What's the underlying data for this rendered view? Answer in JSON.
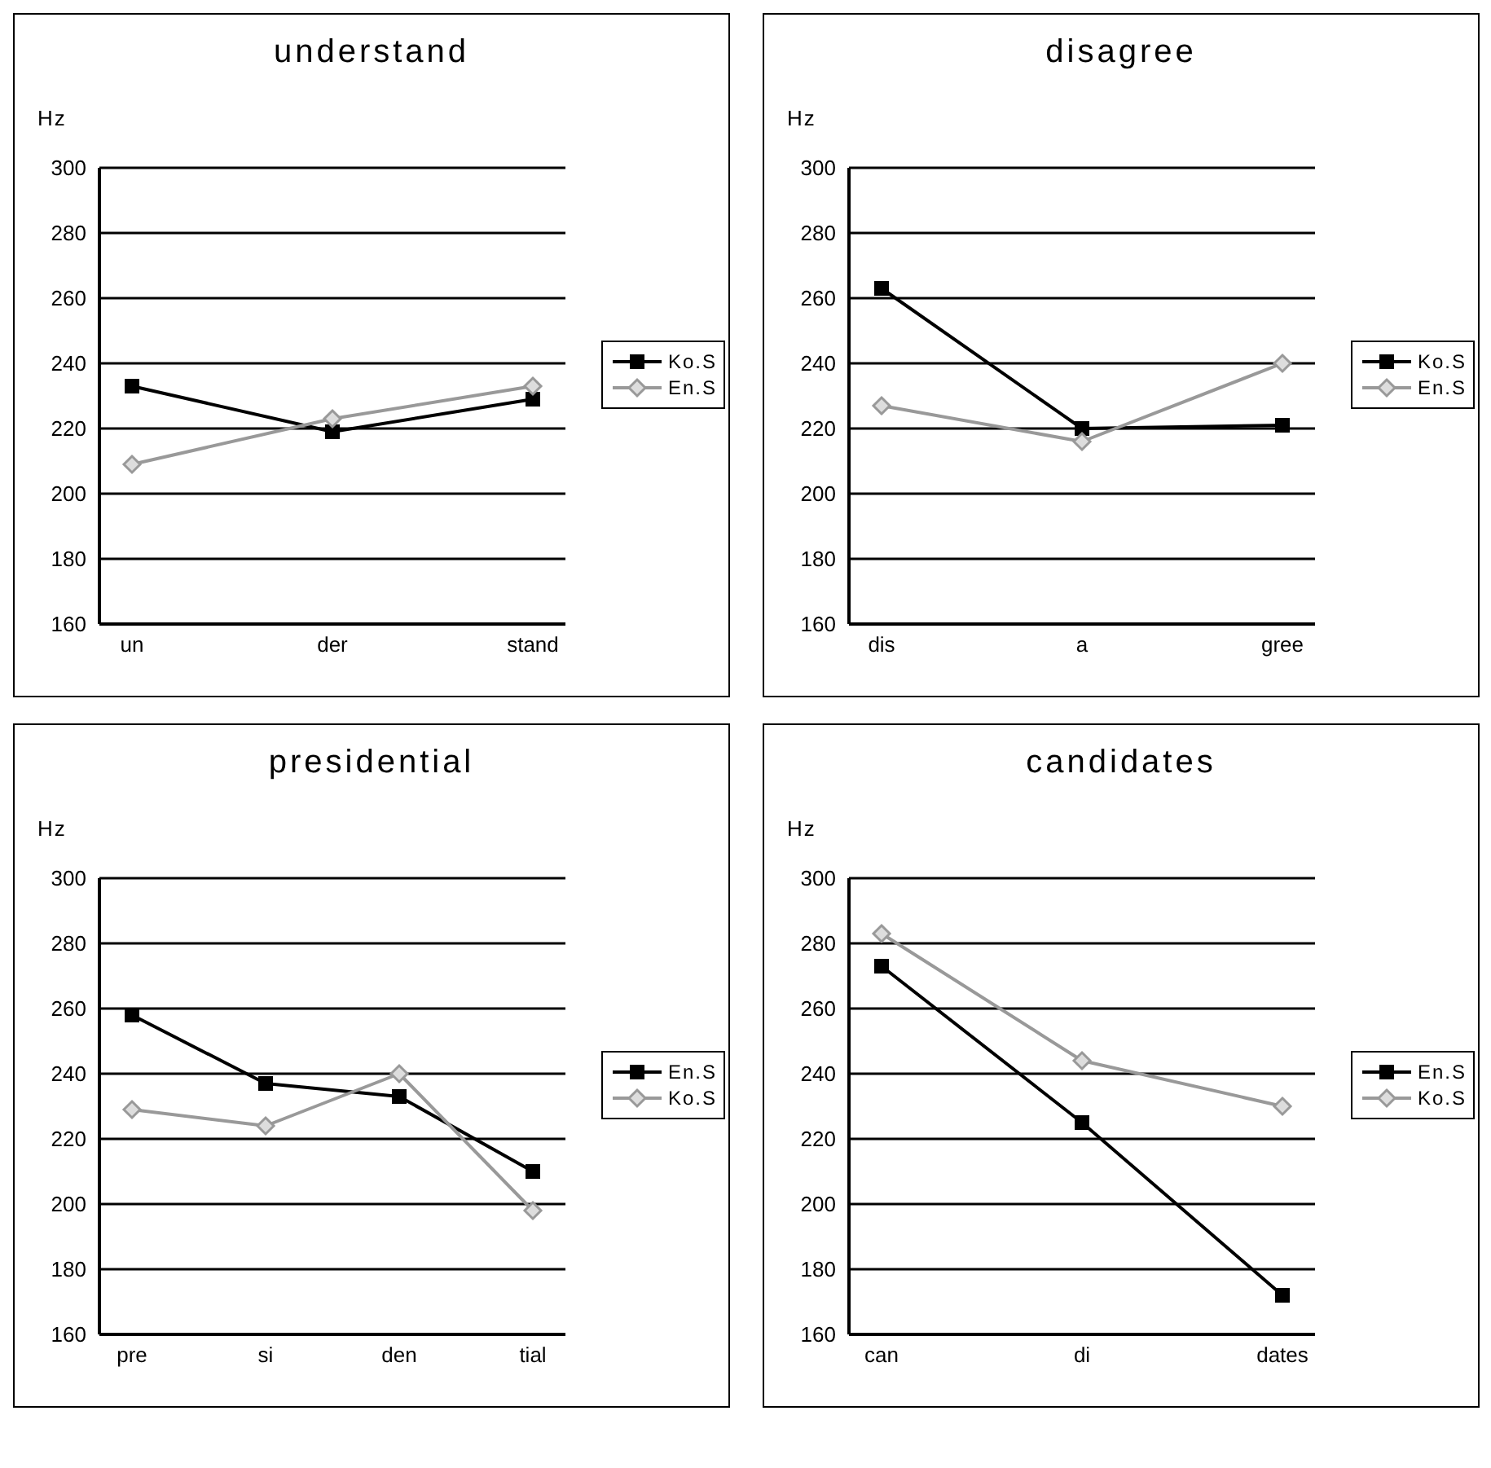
{
  "chart_data": [
    {
      "type": "line",
      "title": "understand",
      "ylabel": "Hz",
      "categories": [
        "un",
        "der",
        "stand"
      ],
      "series": [
        {
          "name": "Ko.S",
          "color": "#000000",
          "marker": "square",
          "values": [
            233,
            219,
            229
          ]
        },
        {
          "name": "En.S",
          "color": "#999999",
          "marker": "diamond",
          "values": [
            209,
            223,
            233
          ]
        }
      ],
      "ylim": [
        160,
        300
      ],
      "yticks": [
        160,
        180,
        200,
        220,
        240,
        260,
        280,
        300
      ],
      "grid": "y",
      "legend": "right"
    },
    {
      "type": "line",
      "title": "disagree",
      "ylabel": "Hz",
      "categories": [
        "dis",
        "a",
        "gree"
      ],
      "series": [
        {
          "name": "Ko.S",
          "color": "#000000",
          "marker": "square",
          "values": [
            263,
            220,
            221
          ]
        },
        {
          "name": "En.S",
          "color": "#999999",
          "marker": "diamond",
          "values": [
            227,
            216,
            240
          ]
        }
      ],
      "ylim": [
        160,
        300
      ],
      "yticks": [
        160,
        180,
        200,
        220,
        240,
        260,
        280,
        300
      ],
      "grid": "y",
      "legend": "right"
    },
    {
      "type": "line",
      "title": "presidential",
      "ylabel": "Hz",
      "categories": [
        "pre",
        "si",
        "den",
        "tial"
      ],
      "series": [
        {
          "name": "En.S",
          "color": "#000000",
          "marker": "square",
          "values": [
            258,
            237,
            233,
            210
          ]
        },
        {
          "name": "Ko.S",
          "color": "#999999",
          "marker": "diamond",
          "values": [
            229,
            224,
            240,
            198
          ]
        }
      ],
      "ylim": [
        160,
        300
      ],
      "yticks": [
        160,
        180,
        200,
        220,
        240,
        260,
        280,
        300
      ],
      "grid": "y",
      "legend": "right"
    },
    {
      "type": "line",
      "title": "candidates",
      "ylabel": "Hz",
      "categories": [
        "can",
        "di",
        "dates"
      ],
      "series": [
        {
          "name": "En.S",
          "color": "#000000",
          "marker": "square",
          "values": [
            273,
            225,
            172
          ]
        },
        {
          "name": "Ko.S",
          "color": "#999999",
          "marker": "diamond",
          "values": [
            283,
            244,
            230
          ]
        }
      ],
      "ylim": [
        160,
        300
      ],
      "yticks": [
        160,
        180,
        200,
        220,
        240,
        260,
        280,
        300
      ],
      "grid": "y",
      "legend": "right"
    }
  ]
}
